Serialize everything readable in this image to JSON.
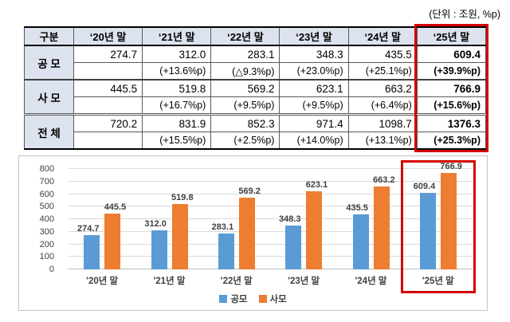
{
  "units_label": "(단위 : 조원, %p)",
  "table": {
    "col_header": "구분",
    "year_headers": [
      "‘20년 말",
      "‘21년 말",
      "‘22년 말",
      "‘23년 말",
      "‘24년 말",
      "‘25년 말"
    ],
    "rows": [
      {
        "label": "공 모",
        "values": [
          "274.7",
          "312.0",
          "283.1",
          "348.3",
          "435.5",
          "609.4"
        ],
        "changes": [
          "",
          "(+13.6%p)",
          "(△9.3%p)",
          "(+23.0%p)",
          "(+25.1%p)",
          "(+39.9%p)"
        ]
      },
      {
        "label": "사 모",
        "values": [
          "445.5",
          "519.8",
          "569.2",
          "623.1",
          "663.2",
          "766.9"
        ],
        "changes": [
          "",
          "(+16.7%p)",
          "(+9.5%p)",
          "(+9.5%p)",
          "(+6.4%p)",
          "(+15.6%p)"
        ]
      },
      {
        "label": "전 체",
        "values": [
          "720.2",
          "831.9",
          "852.3",
          "971.4",
          "1098.7",
          "1376.3"
        ],
        "changes": [
          "",
          "(+15.5%p)",
          "(+2.5%p)",
          "(+14.0%p)",
          "(+13.1%p)",
          "(+25.3%p)"
        ]
      }
    ]
  },
  "chart_data": {
    "type": "bar",
    "categories": [
      "'20년 말",
      "'21년 말",
      "'22년 말",
      "'23년 말",
      "'24년 말",
      "'25년 말"
    ],
    "series": [
      {
        "name": "공모",
        "color": "#5b9bd5",
        "values": [
          274.7,
          312.0,
          283.1,
          348.3,
          435.5,
          609.4
        ]
      },
      {
        "name": "사모",
        "color": "#ed7d31",
        "values": [
          445.5,
          519.8,
          569.2,
          623.1,
          663.2,
          766.9
        ]
      }
    ],
    "title": "",
    "xlabel": "",
    "ylabel": "",
    "ylim": [
      0,
      800
    ],
    "ytick_step": 100,
    "grid": true,
    "legend_position": "bottom",
    "highlighted_category": "'25년 말"
  },
  "colors": {
    "highlight_red": "#d40000",
    "table_header_bg": "#dce3ef",
    "gridline": "#d9d9d9",
    "bar_blue": "#5b9bd5",
    "bar_orange": "#ed7d31"
  }
}
